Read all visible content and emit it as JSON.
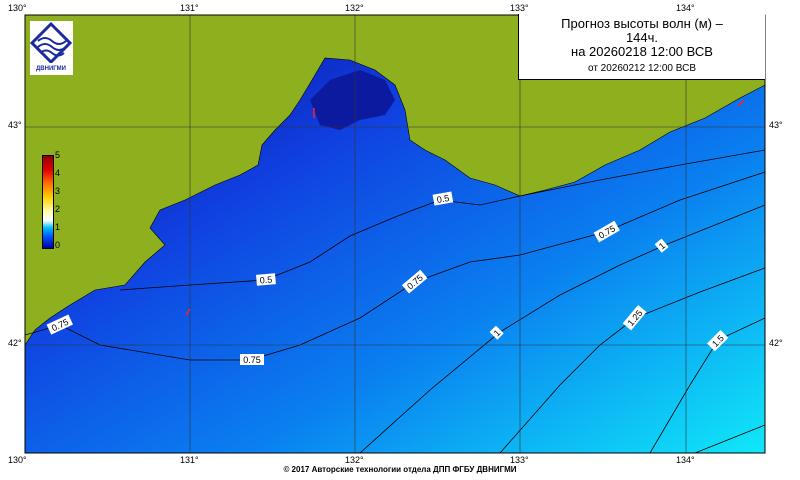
{
  "title": {
    "line1": "Прогноз высоты волн (м) –",
    "line2": "144ч.",
    "valid": "на 20260218 12:00 ВСВ",
    "issued": "от 20260212 12:00 ВСВ"
  },
  "logo": {
    "text": "ДВНИГМИ"
  },
  "axes": {
    "lon_ticks": [
      "130°",
      "131°",
      "132°",
      "133°",
      "134°"
    ],
    "lat_ticks": [
      "43°",
      "42°"
    ]
  },
  "legend": {
    "unit": "м",
    "labels": [
      "5",
      "4",
      "3",
      "2",
      "1",
      "0"
    ]
  },
  "contours": [
    "0.5",
    "0.5",
    "0.75",
    "0.75",
    "0.75",
    "0.75",
    "1",
    "1",
    "1.25",
    "1.5"
  ],
  "colors": {
    "land": "#8fb01e",
    "sea_low": "#0000b0",
    "sea_high": "#00e0ff",
    "arrow": "#ff2020"
  },
  "footer": "© 2017 Авторские технологии отдела ДПП ФГБУ ДВНИГМИ"
}
